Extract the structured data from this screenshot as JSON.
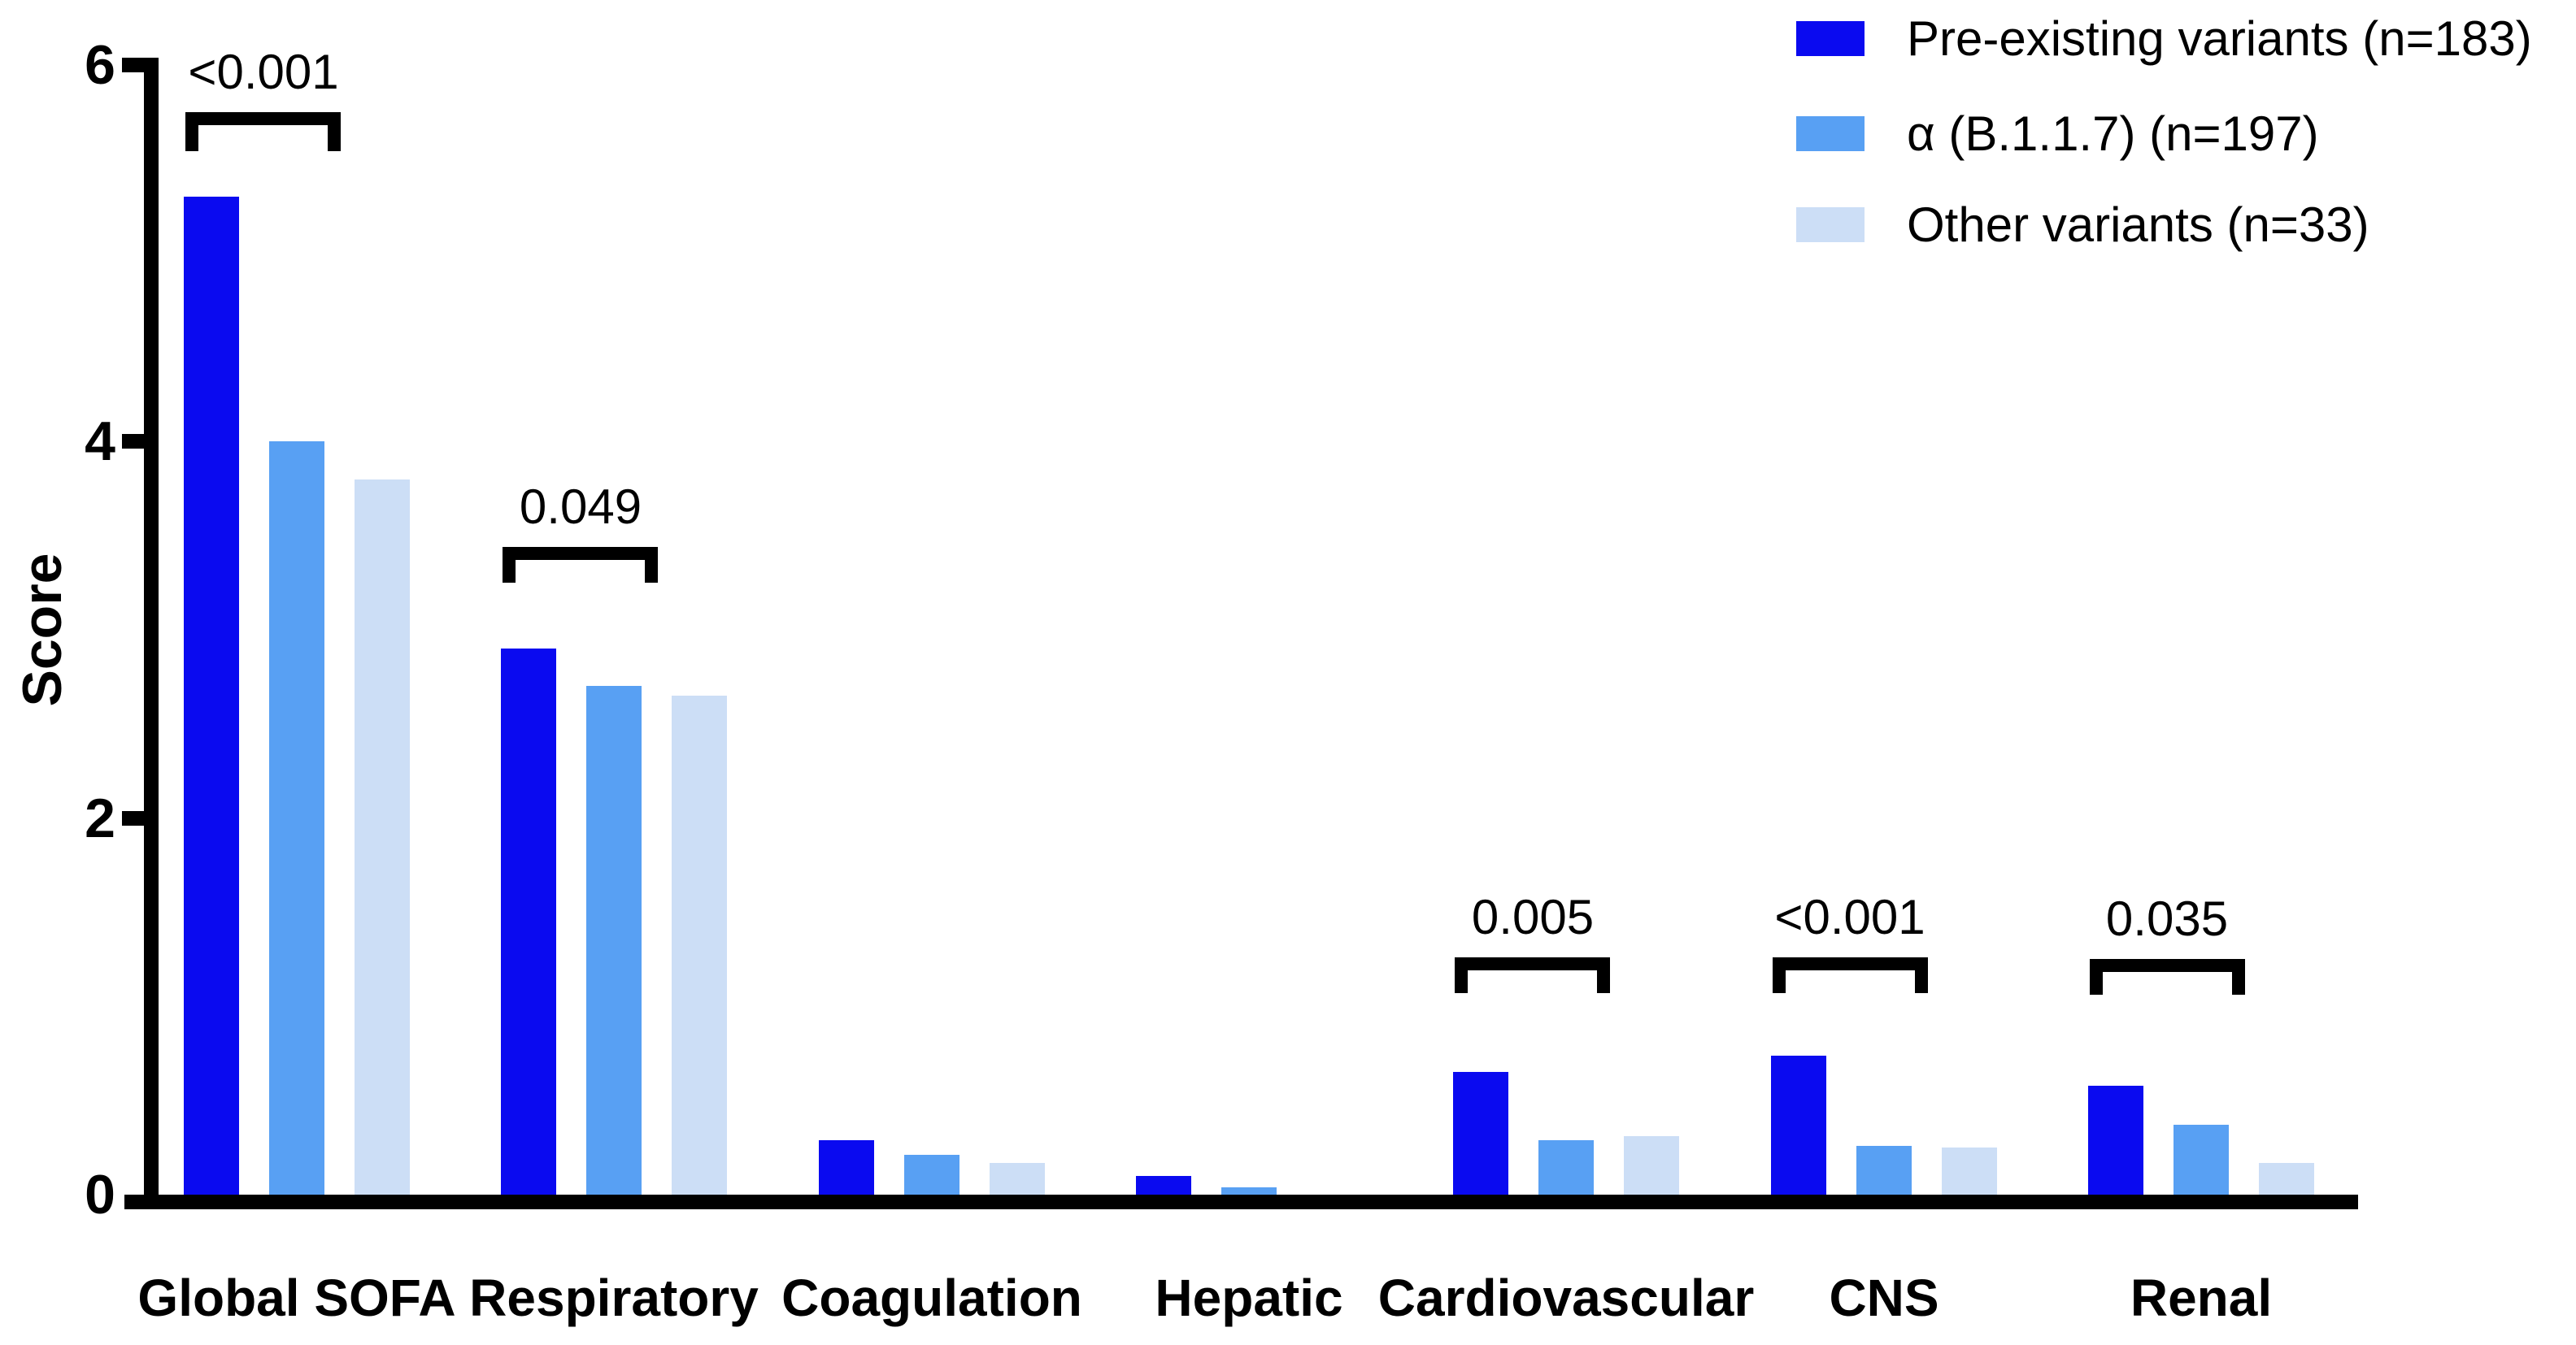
{
  "chart_data": {
    "type": "bar",
    "title": "",
    "ylabel": "Score",
    "ylim": [
      0,
      6
    ],
    "yticks": [
      0,
      2,
      4,
      6
    ],
    "grid": false,
    "legend_position": "top-right",
    "categories": [
      "Global SOFA",
      "Respiratory",
      "Coagulation",
      "Hepatic",
      "Cardiovascular",
      "CNS",
      "Renal"
    ],
    "series": [
      {
        "name": "Pre-existing variants (n=183)",
        "color": "#0A0AF0",
        "values": [
          5.3,
          2.9,
          0.29,
          0.1,
          0.65,
          0.74,
          0.58
        ]
      },
      {
        "name": "α (B.1.1.7) (n=197)",
        "color": "#58A0F3",
        "values": [
          4.0,
          2.7,
          0.21,
          0.04,
          0.29,
          0.26,
          0.37
        ]
      },
      {
        "name": "Other variants (n=33)",
        "color": "#CCDEF6",
        "values": [
          3.8,
          2.65,
          0.17,
          0,
          0.31,
          0.25,
          0.17
        ]
      }
    ],
    "annotations": [
      {
        "category": "Global SOFA",
        "label": "<0.001",
        "bars": [
          0,
          1
        ],
        "bracket_y": 5.75
      },
      {
        "category": "Respiratory",
        "label": "0.049",
        "bars": [
          0,
          1
        ],
        "bracket_y": 3.44
      },
      {
        "category": "Cardiovascular",
        "label": "0.005",
        "bars": [
          0,
          1
        ],
        "bracket_y": 1.26
      },
      {
        "category": "CNS",
        "label": "<0.001",
        "bars": [
          0,
          1
        ],
        "bracket_y": 1.26
      },
      {
        "category": "Renal",
        "label": "0.035",
        "bars": [
          0,
          1
        ],
        "bracket_y": 1.25
      }
    ]
  }
}
